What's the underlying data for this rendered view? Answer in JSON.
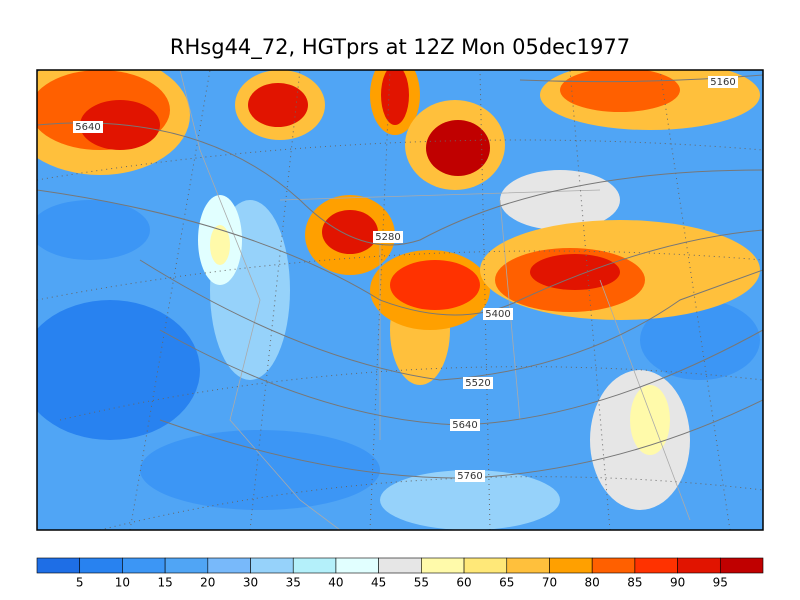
{
  "title": "RHsg44_72, HGTprs at 12Z Mon 05dec1977",
  "contour_labels": [
    5160,
    5640,
    5280,
    5400,
    5520,
    5640,
    5760
  ],
  "colorbar": {
    "colors": [
      "#1e6ee6",
      "#2882f0",
      "#3c96f5",
      "#50a5f5",
      "#78b9fa",
      "#96d2fa",
      "#b4f0fa",
      "#e1ffff",
      "#e6e6e6",
      "#fffaaa",
      "#ffe878",
      "#ffc03c",
      "#ffa000",
      "#ff6000",
      "#ff3200",
      "#e11400",
      "#c00000"
    ],
    "ticks": [
      5,
      10,
      15,
      20,
      30,
      35,
      40,
      45,
      55,
      60,
      65,
      70,
      80,
      85,
      90,
      95
    ]
  }
}
